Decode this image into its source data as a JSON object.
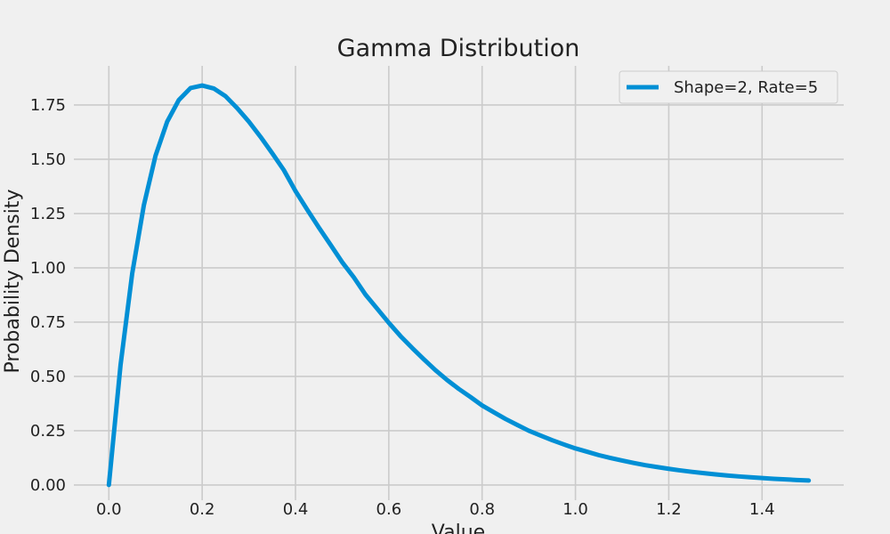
{
  "chart_data": {
    "type": "line",
    "title": "Gamma Distribution",
    "xlabel": "Value",
    "ylabel": "Probability Density",
    "xlim": [
      -0.075,
      1.575
    ],
    "ylim": [
      -0.07,
      1.93
    ],
    "xticks": [
      0.0,
      0.2,
      0.4,
      0.6,
      0.8,
      1.0,
      1.2,
      1.4
    ],
    "xtick_labels": [
      "0.0",
      "0.2",
      "0.4",
      "0.6",
      "0.8",
      "1.0",
      "1.2",
      "1.4"
    ],
    "yticks": [
      0.0,
      0.25,
      0.5,
      0.75,
      1.0,
      1.25,
      1.5,
      1.75
    ],
    "ytick_labels": [
      "0.00",
      "0.25",
      "0.50",
      "0.75",
      "1.00",
      "1.25",
      "1.50",
      "1.75"
    ],
    "grid": true,
    "legend_position": "top-right",
    "series": [
      {
        "name": "Shape=2, Rate=5",
        "color": "#008fd5",
        "x": [
          0.0,
          0.025,
          0.05,
          0.075,
          0.1,
          0.125,
          0.15,
          0.175,
          0.2,
          0.225,
          0.25,
          0.275,
          0.3,
          0.325,
          0.35,
          0.375,
          0.4,
          0.425,
          0.45,
          0.475,
          0.5,
          0.525,
          0.55,
          0.575,
          0.6,
          0.625,
          0.65,
          0.675,
          0.7,
          0.725,
          0.75,
          0.775,
          0.8,
          0.825,
          0.85,
          0.875,
          0.9,
          0.925,
          0.95,
          0.975,
          1.0,
          1.025,
          1.05,
          1.075,
          1.1,
          1.125,
          1.15,
          1.175,
          1.2,
          1.225,
          1.25,
          1.275,
          1.3,
          1.325,
          1.35,
          1.375,
          1.4,
          1.425,
          1.45,
          1.475,
          1.5
        ],
        "y": [
          0.0,
          0.5516,
          0.9735,
          1.2885,
          1.5163,
          1.673,
          1.7728,
          1.8278,
          1.8394,
          1.8258,
          1.7904,
          1.7353,
          1.6735,
          1.6033,
          1.5279,
          1.4499,
          1.3534,
          1.2683,
          1.1858,
          1.1065,
          1.0261,
          0.956,
          0.8766,
          0.812,
          0.7468,
          0.6858,
          0.6311,
          0.5789,
          0.5285,
          0.4832,
          0.4423,
          0.4052,
          0.3663,
          0.3349,
          0.3043,
          0.2767,
          0.2499,
          0.2278,
          0.2064,
          0.1869,
          0.1684,
          0.153,
          0.1375,
          0.1244,
          0.1124,
          0.1014,
          0.0911,
          0.0826,
          0.0744,
          0.067,
          0.0604,
          0.0543,
          0.0488,
          0.0439,
          0.0394,
          0.0354,
          0.0318,
          0.0285,
          0.0256,
          0.0229,
          0.0206
        ]
      }
    ]
  }
}
